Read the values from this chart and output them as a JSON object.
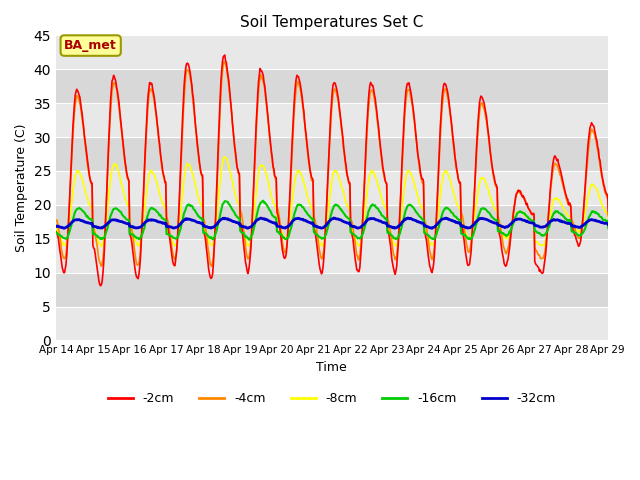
{
  "title": "Soil Temperatures Set C",
  "xlabel": "Time",
  "ylabel": "Soil Temperature (C)",
  "ylim": [
    0,
    45
  ],
  "yticks": [
    0,
    5,
    10,
    15,
    20,
    25,
    30,
    35,
    40,
    45
  ],
  "x_labels": [
    "Apr 14",
    "Apr 15",
    "Apr 16",
    "Apr 17",
    "Apr 18",
    "Apr 19",
    "Apr 20",
    "Apr 21",
    "Apr 22",
    "Apr 23",
    "Apr 24",
    "Apr 25",
    "Apr 26",
    "Apr 27",
    "Apr 28",
    "Apr 29"
  ],
  "series_colors": [
    "#ff0000",
    "#ff8800",
    "#ffff00",
    "#00cc00",
    "#0000cc"
  ],
  "series_labels": [
    "-2cm",
    "-4cm",
    "-8cm",
    "-16cm",
    "-32cm"
  ],
  "series_linewidths": [
    1.2,
    1.2,
    1.2,
    1.5,
    2.0
  ],
  "annotation_text": "BA_met",
  "annotation_bg": "#ffff99",
  "annotation_border": "#999900",
  "plot_bg": "#e8e8e8",
  "band_colors": [
    "#e0e0e0",
    "#d8d8d8"
  ]
}
